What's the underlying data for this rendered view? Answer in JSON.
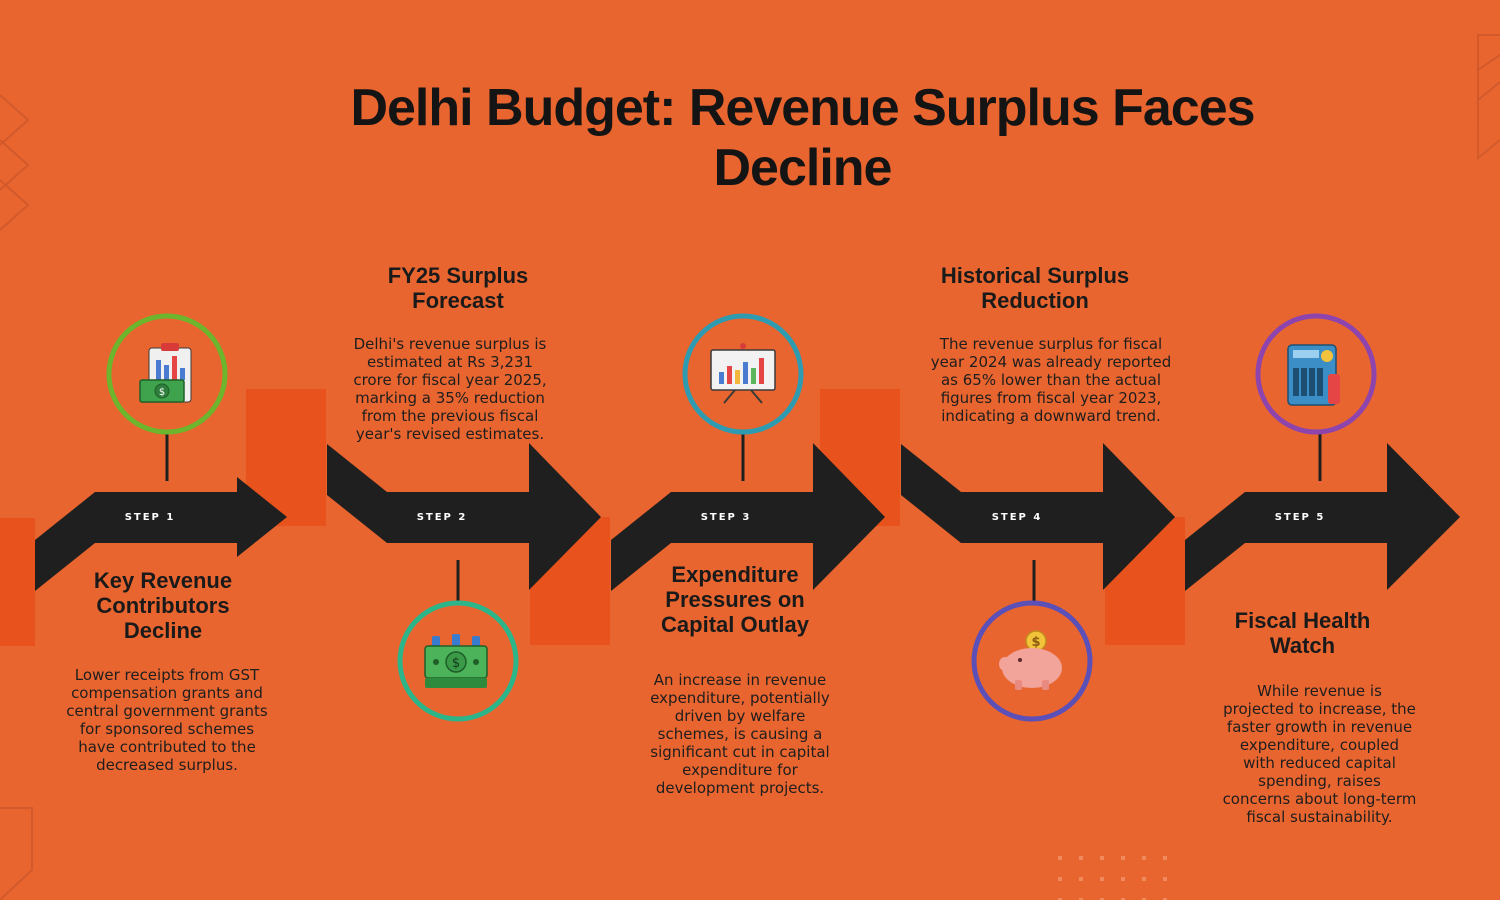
{
  "title": "Delhi Budget: Revenue Surplus Faces Decline",
  "colors": {
    "background": "#E9652F",
    "accent": "#E8521C",
    "arrow": "#1F1F1F",
    "text": "#1a1a1a"
  },
  "steps": [
    {
      "label": "STEP 1",
      "heading": "Key Revenue Contributors Decline",
      "description": "Lower receipts from GST compensation grants and central government grants for sponsored schemes have contributed to the decreased surplus.",
      "icon": "clipboard-money-icon",
      "ring_color": "#6CB52D"
    },
    {
      "label": "STEP 2",
      "heading": "FY25 Surplus Forecast",
      "description": "Delhi's revenue surplus is estimated at Rs 3,231 crore for fiscal year 2025, marking a 35% reduction from the previous fiscal year's revised estimates.",
      "icon": "money-stack-icon",
      "ring_color": "#2DB58A"
    },
    {
      "label": "STEP 3",
      "heading": "Expenditure Pressures on Capital Outlay",
      "description": "An increase in revenue expenditure, potentially driven by welfare schemes, is causing a significant cut in capital expenditure for development projects.",
      "icon": "presentation-chart-icon",
      "ring_color": "#2E9BB0"
    },
    {
      "label": "STEP 4",
      "heading": "Historical Surplus Reduction",
      "description": "The revenue surplus for fiscal year 2024 was already reported as 65% lower than the actual figures from fiscal year 2023, indicating a downward trend.",
      "icon": "piggy-bank-icon",
      "ring_color": "#5B4FB8"
    },
    {
      "label": "STEP 5",
      "heading": "Fiscal Health Watch",
      "description": "While revenue is projected to increase, the faster growth in revenue expenditure, coupled with reduced capital spending, raises concerns about long-term fiscal sustainability.",
      "icon": "calculator-icon",
      "ring_color": "#8E44AD"
    }
  ]
}
